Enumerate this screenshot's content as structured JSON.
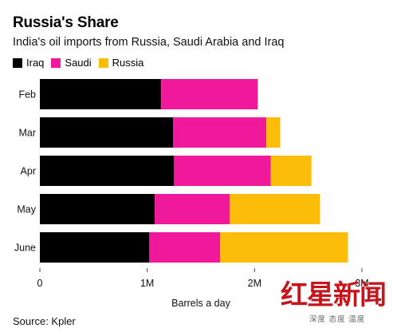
{
  "header": {
    "title": "Russia's Share",
    "subtitle": "India's oil imports from Russia, Saudi Arabia and Iraq"
  },
  "source": "Source: Kpler",
  "watermark": {
    "main": "红星新闻",
    "sub": "深度 态度 温度"
  },
  "colors": {
    "Iraq": "#000000",
    "Saudi": "#f0199b",
    "Russia": "#fbbd09",
    "axis": "#444444"
  },
  "chart_data": {
    "type": "bar",
    "orientation": "horizontal",
    "stacked": true,
    "title": "Russia's Share",
    "subtitle": "India's oil imports from Russia, Saudi Arabia and Iraq",
    "categories": [
      "Feb",
      "Mar",
      "Apr",
      "May",
      "June"
    ],
    "series": [
      {
        "name": "Iraq",
        "values": [
          1.13,
          1.24,
          1.25,
          1.07,
          1.02
        ]
      },
      {
        "name": "Saudi",
        "values": [
          0.9,
          0.87,
          0.9,
          0.7,
          0.66
        ]
      },
      {
        "name": "Russia",
        "values": [
          0.0,
          0.13,
          0.38,
          0.84,
          1.19
        ]
      }
    ],
    "xlabel": "Barrels a day",
    "ylabel": "",
    "xlim": [
      0,
      3
    ],
    "xticks": [
      0,
      1,
      2,
      3
    ],
    "xtick_labels": [
      "0",
      "1M",
      "2M",
      "3M"
    ],
    "legend": "top-left",
    "grid": false
  }
}
